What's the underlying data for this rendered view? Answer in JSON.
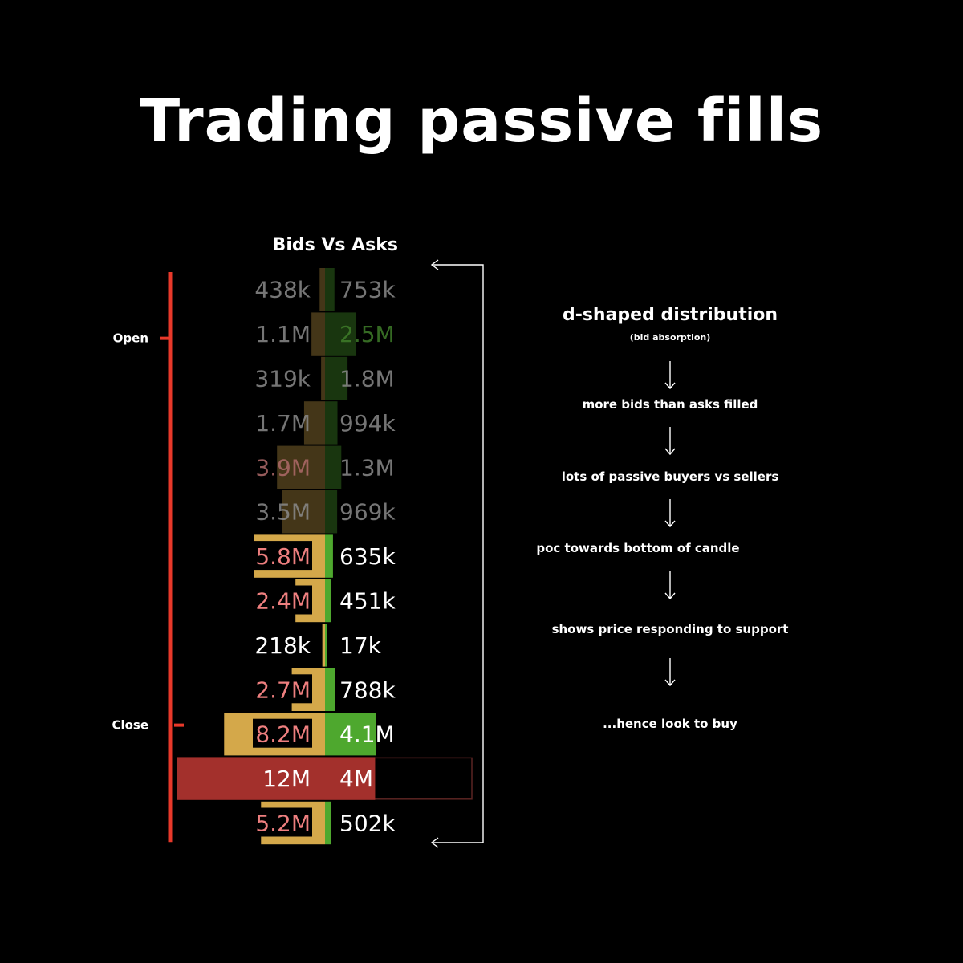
{
  "title": "Trading passive fills",
  "chart_data": {
    "type": "bar",
    "title": "Bids Vs Asks",
    "bracket_labels": {
      "open": "Open",
      "close": "Close"
    },
    "rows": [
      {
        "bid": 438000,
        "ask": 753000,
        "bid_label": "438k",
        "ask_label": "753k"
      },
      {
        "bid": 1100000,
        "ask": 2500000,
        "bid_label": "1.1M",
        "ask_label": "2.5M"
      },
      {
        "bid": 319000,
        "ask": 1800000,
        "bid_label": "319k",
        "ask_label": "1.8M"
      },
      {
        "bid": 1700000,
        "ask": 994000,
        "bid_label": "1.7M",
        "ask_label": "994k"
      },
      {
        "bid": 3900000,
        "ask": 1300000,
        "bid_label": "3.9M",
        "ask_label": "1.3M"
      },
      {
        "bid": 3500000,
        "ask": 969000,
        "bid_label": "3.5M",
        "ask_label": "969k"
      },
      {
        "bid": 5800000,
        "ask": 635000,
        "bid_label": "5.8M",
        "ask_label": "635k"
      },
      {
        "bid": 2400000,
        "ask": 451000,
        "bid_label": "2.4M",
        "ask_label": "451k"
      },
      {
        "bid": 218000,
        "ask": 17000,
        "bid_label": "218k",
        "ask_label": "17k"
      },
      {
        "bid": 2700000,
        "ask": 788000,
        "bid_label": "2.7M",
        "ask_label": "788k"
      },
      {
        "bid": 8200000,
        "ask": 4100000,
        "bid_label": "8.2M",
        "ask_label": "4.1M"
      },
      {
        "bid": 12000000,
        "ask": 4000000,
        "bid_label": "12M",
        "ask_label": "4M"
      },
      {
        "bid": 5200000,
        "ask": 502000,
        "bid_label": "5.2M",
        "ask_label": "502k"
      }
    ],
    "open_row": 1,
    "close_row": 10,
    "poc_row": 11,
    "dimmed_rows": 6,
    "colors": {
      "bid_bar": "#d4a84a",
      "ask_bar": "#4ea82e",
      "poc_bar": "#a3302c",
      "bid_highlight_text": "#ee7f7f",
      "bracket": "#e8392a",
      "label": "#ffffff"
    }
  },
  "flow": {
    "title": "d-shaped distribution",
    "subtitle": "(bid absorption)",
    "steps": [
      "more bids than asks filled",
      "lots of passive buyers vs sellers",
      "poc towards bottom of candle",
      "shows price responding to support",
      "...hence look to buy"
    ]
  }
}
